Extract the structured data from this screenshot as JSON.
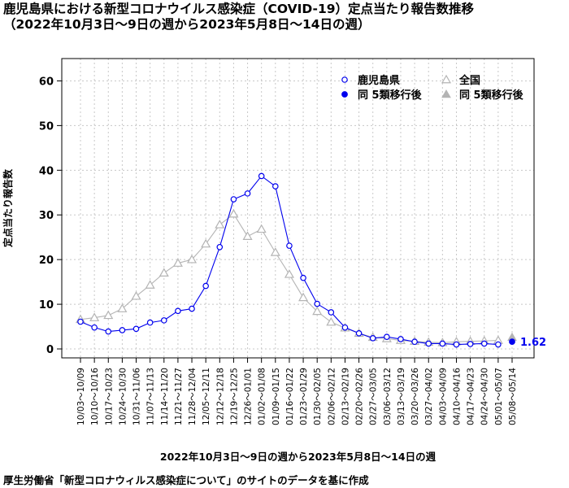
{
  "title_line1": "鹿児島県における新型コロナウイルス感染症（COVID-19）定点当たり報告数推移",
  "title_line2": "（2022年10月3日〜9日の週から2023年5月8日〜14日の週）",
  "footer": "厚生労働省「新型コロナウィルス感染症について」のサイトのデータを基に作成",
  "colors": {
    "kagoshima": "#0000ee",
    "national": "#b4b4b4",
    "grid": "#c8c8c8"
  },
  "chart_data": {
    "type": "line",
    "xlabel": "2022年10月3日〜9日の週から2023年5月8日〜14日の週",
    "ylabel": "定点当たり報告数",
    "ylim": [
      -2,
      65
    ],
    "yticks": [
      0,
      10,
      20,
      30,
      40,
      50,
      60
    ],
    "grid": true,
    "legend_position": "top-right",
    "categories": [
      "10/03~10/09",
      "10/10~10/16",
      "10/17~10/23",
      "10/24~10/30",
      "10/31~11/06",
      "11/07~11/13",
      "11/14~11/20",
      "11/21~11/27",
      "11/28~12/04",
      "12/05~12/11",
      "12/12~12/18",
      "12/19~12/25",
      "12/26~01/01",
      "01/02~01/08",
      "01/09~01/15",
      "01/16~01/22",
      "01/23~01/29",
      "01/30~02/05",
      "02/06~02/12",
      "02/13~02/19",
      "02/20~02/26",
      "02/27~03/05",
      "03/06~03/12",
      "03/13~03/19",
      "03/20~03/26",
      "03/27~04/02",
      "04/03~04/09",
      "04/10~04/16",
      "04/17~04/23",
      "04/24~04/30",
      "05/01~05/07",
      "05/08~05/14"
    ],
    "series": [
      {
        "name": "鹿児島県",
        "marker": "circle-open",
        "values": [
          6.1,
          4.8,
          3.9,
          4.2,
          4.5,
          5.9,
          6.4,
          8.5,
          9.0,
          14.1,
          22.8,
          33.5,
          34.8,
          38.7,
          36.4,
          23.1,
          15.9,
          10.1,
          8.2,
          4.8,
          3.5,
          2.4,
          2.7,
          2.2,
          1.6,
          1.2,
          1.2,
          1.0,
          1.1,
          1.2,
          1.0,
          null
        ]
      },
      {
        "name": "同 5類移行後",
        "marker": "circle-filled",
        "values": [
          null,
          null,
          null,
          null,
          null,
          null,
          null,
          null,
          null,
          null,
          null,
          null,
          null,
          null,
          null,
          null,
          null,
          null,
          null,
          null,
          null,
          null,
          null,
          null,
          null,
          null,
          null,
          null,
          null,
          null,
          null,
          1.62
        ]
      },
      {
        "name": "全国",
        "marker": "triangle-open",
        "values": [
          6.6,
          7.0,
          7.5,
          9.0,
          11.8,
          14.3,
          17.0,
          19.2,
          20.0,
          23.5,
          27.8,
          30.2,
          25.2,
          26.8,
          21.6,
          16.7,
          11.5,
          8.4,
          6.0,
          4.7,
          3.5,
          2.6,
          2.3,
          1.9,
          1.7,
          1.5,
          1.4,
          1.6,
          1.7,
          1.8,
          1.9,
          null
        ]
      },
      {
        "name": "同 5類移行後",
        "marker": "triangle-filled",
        "values": [
          null,
          null,
          null,
          null,
          null,
          null,
          null,
          null,
          null,
          null,
          null,
          null,
          null,
          null,
          null,
          null,
          null,
          null,
          null,
          null,
          null,
          null,
          null,
          null,
          null,
          null,
          null,
          null,
          null,
          null,
          null,
          2.6
        ]
      }
    ],
    "annotation": "1.62"
  }
}
